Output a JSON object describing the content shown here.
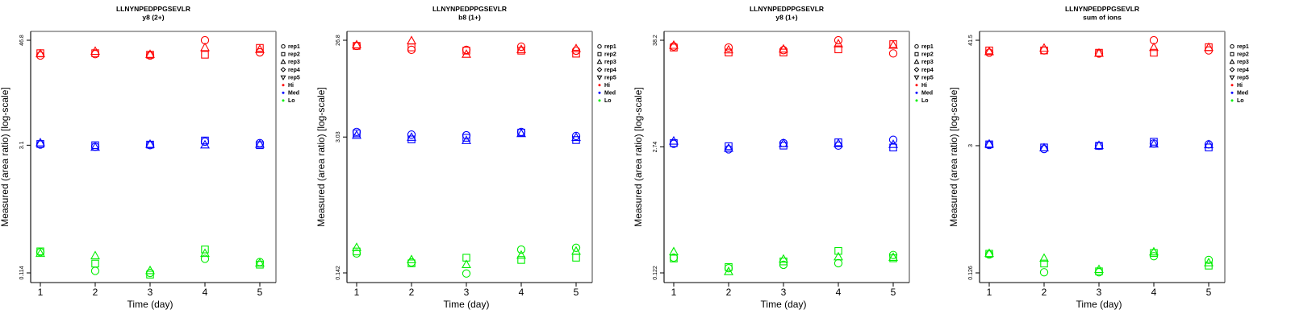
{
  "chart_data": [
    {
      "type": "scatter",
      "title": "LLNYNPEDPPGSEVLR",
      "subtitle": "y8 (2+)",
      "xlabel": "Time (day)",
      "ylabel": "Measured (area ratio) [log-scale]",
      "yscale": "log",
      "x_ticks": [
        "1",
        "2",
        "3",
        "4",
        "5"
      ],
      "y_ticks": [
        "46.8",
        "3.1",
        "0.114"
      ],
      "y_tick_values": [
        46.8,
        3.1,
        0.114
      ],
      "x": [
        1,
        2,
        3,
        4,
        5
      ],
      "series": [
        {
          "name": "Hi rep1",
          "level": "Hi",
          "rep": "rep1",
          "values": [
            31.5,
            32.7,
            31.5,
            46.8,
            34.2
          ]
        },
        {
          "name": "Hi rep2",
          "level": "Hi",
          "rep": "rep2",
          "values": [
            33.5,
            33.5,
            32.2,
            32.2,
            38.4
          ]
        },
        {
          "name": "Hi rep3",
          "level": "Hi",
          "rep": "rep3",
          "values": [
            32.7,
            34.9,
            32.2,
            38.4,
            36.6
          ]
        },
        {
          "name": "Med rep1",
          "level": "Med",
          "rep": "rep1",
          "values": [
            3.15,
            2.98,
            3.1,
            3.4,
            3.27
          ]
        },
        {
          "name": "Med rep2",
          "level": "Med",
          "rep": "rep2",
          "values": [
            3.2,
            3.1,
            3.15,
            3.5,
            3.1
          ]
        },
        {
          "name": "Med rep3",
          "level": "Med",
          "rep": "rep3",
          "values": [
            3.27,
            2.92,
            3.15,
            3.1,
            3.15
          ]
        },
        {
          "name": "Lo rep1",
          "level": "Lo",
          "rep": "rep1",
          "values": [
            0.195,
            0.12,
            0.114,
            0.164,
            0.151
          ]
        },
        {
          "name": "Lo rep2",
          "level": "Lo",
          "rep": "rep2",
          "values": [
            0.199,
            0.145,
            0.109,
            0.209,
            0.141
          ]
        },
        {
          "name": "Lo rep3",
          "level": "Lo",
          "rep": "rep3",
          "values": [
            0.187,
            0.176,
            0.12,
            0.187,
            0.146
          ]
        }
      ]
    },
    {
      "type": "scatter",
      "title": "LLNYNPEDPPGSEVLR",
      "subtitle": "b8 (1+)",
      "xlabel": "Time (day)",
      "ylabel": "Measured (area ratio) [log-scale]",
      "yscale": "log",
      "x_ticks": [
        "1",
        "2",
        "3",
        "4",
        "5"
      ],
      "y_ticks": [
        "26.8",
        "3.03",
        "0.142"
      ],
      "y_tick_values": [
        26.8,
        3.03,
        0.142
      ],
      "x": [
        1,
        2,
        3,
        4,
        5
      ],
      "series": [
        {
          "name": "Hi rep1",
          "level": "Hi",
          "rep": "rep1",
          "values": [
            23.6,
            21.6,
            21.6,
            23.2,
            21.2
          ]
        },
        {
          "name": "Hi rep2",
          "level": "Hi",
          "rep": "rep2",
          "values": [
            23.6,
            22.8,
            21.2,
            21.2,
            19.8
          ]
        },
        {
          "name": "Hi rep3",
          "level": "Hi",
          "rep": "rep3",
          "values": [
            24.0,
            26.3,
            19.4,
            21.6,
            22.0
          ]
        },
        {
          "name": "Med rep1",
          "level": "Med",
          "rep": "rep1",
          "values": [
            3.4,
            3.2,
            3.15,
            3.4,
            3.1
          ]
        },
        {
          "name": "Med rep2",
          "level": "Med",
          "rep": "rep2",
          "values": [
            3.29,
            2.87,
            2.98,
            3.35,
            2.83
          ]
        },
        {
          "name": "Med rep3",
          "level": "Med",
          "rep": "rep3",
          "values": [
            3.13,
            2.99,
            2.78,
            3.25,
            2.98
          ]
        },
        {
          "name": "Lo rep1",
          "level": "Lo",
          "rep": "rep1",
          "values": [
            0.22,
            0.18,
            0.14,
            0.24,
            0.25
          ]
        },
        {
          "name": "Lo rep2",
          "level": "Lo",
          "rep": "rep2",
          "values": [
            0.23,
            0.176,
            0.2,
            0.19,
            0.2
          ]
        },
        {
          "name": "Lo rep3",
          "level": "Lo",
          "rep": "rep3",
          "values": [
            0.25,
            0.19,
            0.17,
            0.21,
            0.23
          ]
        }
      ]
    },
    {
      "type": "scatter",
      "title": "LLNYNPEDPPGSEVLR",
      "subtitle": "y8 (1+)",
      "xlabel": "Time (day)",
      "ylabel": "Measured (area ratio) [log-scale]",
      "yscale": "log",
      "x_ticks": [
        "1",
        "2",
        "3",
        "4",
        "5"
      ],
      "y_ticks": [
        "38.2",
        "2.74",
        "0.122"
      ],
      "y_tick_values": [
        38.2,
        2.74,
        0.122
      ],
      "x": [
        1,
        2,
        3,
        4,
        5
      ],
      "series": [
        {
          "name": "Hi rep1",
          "level": "Hi",
          "rep": "rep1",
          "values": [
            32.8,
            31.9,
            29.9,
            38.2,
            27.6
          ]
        },
        {
          "name": "Hi rep2",
          "level": "Hi",
          "rep": "rep2",
          "values": [
            31.9,
            28.2,
            28.2,
            30.5,
            34.7
          ]
        },
        {
          "name": "Hi rep3",
          "level": "Hi",
          "rep": "rep3",
          "values": [
            33.5,
            29.9,
            30.5,
            34.7,
            33.5
          ]
        },
        {
          "name": "Med rep1",
          "level": "Med",
          "rep": "rep1",
          "values": [
            2.96,
            2.58,
            3.01,
            2.83,
            3.27
          ]
        },
        {
          "name": "Med rep2",
          "level": "Med",
          "rep": "rep2",
          "values": [
            3.01,
            2.79,
            2.83,
            3.07,
            2.7
          ]
        },
        {
          "name": "Med rep3",
          "level": "Med",
          "rep": "rep3",
          "values": [
            3.14,
            2.63,
            2.96,
            2.96,
            2.89
          ]
        },
        {
          "name": "Lo rep1",
          "level": "Lo",
          "rep": "rep1",
          "values": [
            0.178,
            0.137,
            0.149,
            0.155,
            0.19
          ]
        },
        {
          "name": "Lo rep2",
          "level": "Lo",
          "rep": "rep2",
          "values": [
            0.174,
            0.141,
            0.162,
            0.21,
            0.175
          ]
        },
        {
          "name": "Lo rep3",
          "level": "Lo",
          "rep": "rep3",
          "values": [
            0.204,
            0.125,
            0.17,
            0.18,
            0.178
          ]
        }
      ]
    },
    {
      "type": "scatter",
      "title": "LLNYNPEDPPGSEVLR",
      "subtitle": "sum of ions",
      "xlabel": "Time (day)",
      "ylabel": "Measured (area ratio) [log-scale]",
      "yscale": "log",
      "x_ticks": [
        "1",
        "2",
        "3",
        "4",
        "5"
      ],
      "y_ticks": [
        "41.5",
        "3",
        "0.126"
      ],
      "y_tick_values": [
        41.5,
        3,
        0.126
      ],
      "x": [
        1,
        2,
        3,
        4,
        5
      ],
      "series": [
        {
          "name": "Hi rep1",
          "level": "Hi",
          "rep": "rep1",
          "values": [
            30.4,
            32.2,
            29.8,
            41.5,
            32.2
          ]
        },
        {
          "name": "Hi rep2",
          "level": "Hi",
          "rep": "rep2",
          "values": [
            32.2,
            32.2,
            30.4,
            30.4,
            34.9
          ]
        },
        {
          "name": "Hi rep3",
          "level": "Hi",
          "rep": "rep3",
          "values": [
            31.0,
            33.8,
            29.8,
            34.4,
            34.4
          ]
        },
        {
          "name": "Med rep1",
          "level": "Med",
          "rep": "rep1",
          "values": [
            3.05,
            2.76,
            2.99,
            3.17,
            3.1
          ]
        },
        {
          "name": "Med rep2",
          "level": "Med",
          "rep": "rep2",
          "values": [
            3.1,
            2.87,
            2.99,
            3.31,
            2.87
          ]
        },
        {
          "name": "Med rep3",
          "level": "Med",
          "rep": "rep3",
          "values": [
            3.1,
            2.82,
            2.99,
            3.1,
            3.05
          ]
        },
        {
          "name": "Lo rep1",
          "level": "Lo",
          "rep": "rep1",
          "values": [
            0.199,
            0.128,
            0.128,
            0.191,
            0.174
          ]
        },
        {
          "name": "Lo rep2",
          "level": "Lo",
          "rep": "rep2",
          "values": [
            0.203,
            0.159,
            0.131,
            0.207,
            0.151
          ]
        },
        {
          "name": "Lo rep3",
          "level": "Lo",
          "rep": "rep3",
          "values": [
            0.203,
            0.18,
            0.136,
            0.211,
            0.161
          ]
        }
      ]
    }
  ],
  "legend": {
    "placement": "right",
    "items": [
      {
        "label": "rep1",
        "symbol": "circle",
        "color": "#000000"
      },
      {
        "label": "rep2",
        "symbol": "square",
        "color": "#000000"
      },
      {
        "label": "rep3",
        "symbol": "triangle-up",
        "color": "#000000"
      },
      {
        "label": "rep4",
        "symbol": "diamond",
        "color": "#000000"
      },
      {
        "label": "rep5",
        "symbol": "triangle-down",
        "color": "#000000"
      },
      {
        "label": "Hi",
        "symbol": "dot",
        "color": "#ff0000"
      },
      {
        "label": "Med",
        "symbol": "dot",
        "color": "#0000ff"
      },
      {
        "label": "Lo",
        "symbol": "dot",
        "color": "#00ee00"
      }
    ]
  },
  "colors": {
    "Hi": "#ff0000",
    "Med": "#0000ff",
    "Lo": "#00ee00",
    "axis": "#000000",
    "box": "#888888"
  },
  "rep_symbols": {
    "rep1": "circle",
    "rep2": "square",
    "rep3": "triangle-up",
    "rep4": "diamond",
    "rep5": "triangle-down"
  }
}
